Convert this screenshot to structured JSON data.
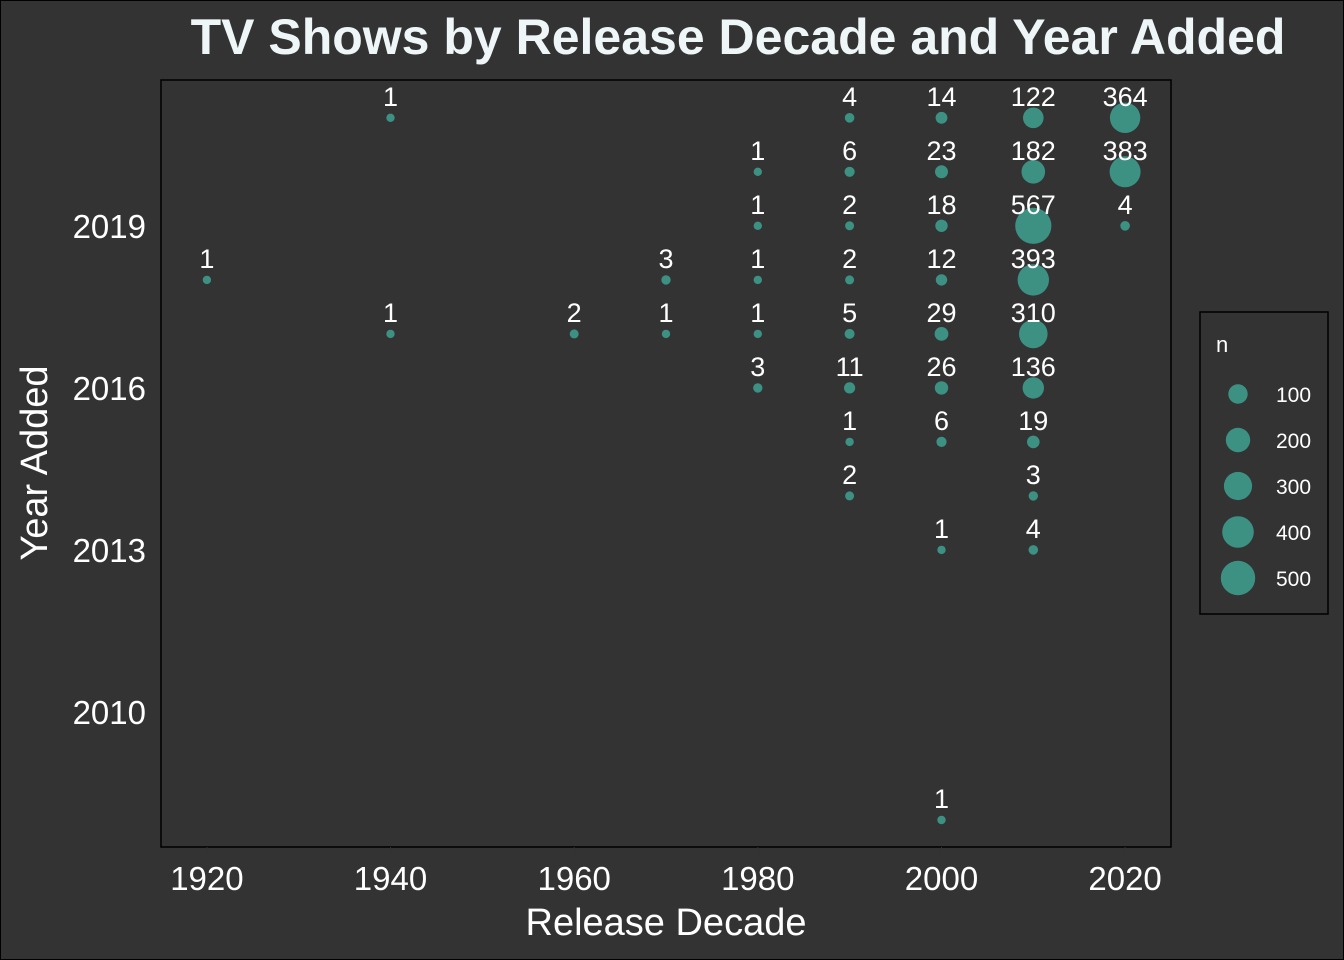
{
  "chart_data": {
    "type": "scatter",
    "title": "TV Shows by Release Decade and Year Added",
    "xlabel": "Release Decade",
    "ylabel": "Year Added",
    "x_ticks": [
      1920,
      1940,
      1960,
      1980,
      2000,
      2020
    ],
    "y_ticks": [
      2010,
      2013,
      2016,
      2019
    ],
    "xlim": [
      1915,
      2025
    ],
    "ylim": [
      2007.5,
      2021.7
    ],
    "grid": false,
    "legend": {
      "title": "n",
      "placement": "right",
      "entries": [
        100,
        200,
        300,
        400,
        500
      ]
    },
    "size_variable": "n",
    "colors": {
      "background": "#333333",
      "point": "#3d9b8c",
      "text": "#ffffff",
      "title": "#eef6f8",
      "border": "#000000"
    },
    "points": [
      {
        "x": 1920,
        "y": 2018,
        "n": 1
      },
      {
        "x": 1940,
        "y": 2021,
        "n": 1
      },
      {
        "x": 1940,
        "y": 2017,
        "n": 1
      },
      {
        "x": 1960,
        "y": 2017,
        "n": 2
      },
      {
        "x": 1970,
        "y": 2018,
        "n": 3
      },
      {
        "x": 1970,
        "y": 2017,
        "n": 1
      },
      {
        "x": 1980,
        "y": 2020,
        "n": 1
      },
      {
        "x": 1980,
        "y": 2019,
        "n": 1
      },
      {
        "x": 1980,
        "y": 2018,
        "n": 1
      },
      {
        "x": 1980,
        "y": 2017,
        "n": 1
      },
      {
        "x": 1980,
        "y": 2016,
        "n": 3
      },
      {
        "x": 1990,
        "y": 2021,
        "n": 4
      },
      {
        "x": 1990,
        "y": 2020,
        "n": 6
      },
      {
        "x": 1990,
        "y": 2019,
        "n": 2
      },
      {
        "x": 1990,
        "y": 2018,
        "n": 2
      },
      {
        "x": 1990,
        "y": 2017,
        "n": 5
      },
      {
        "x": 1990,
        "y": 2016,
        "n": 11
      },
      {
        "x": 1990,
        "y": 2015,
        "n": 1
      },
      {
        "x": 1990,
        "y": 2014,
        "n": 2
      },
      {
        "x": 2000,
        "y": 2021,
        "n": 14
      },
      {
        "x": 2000,
        "y": 2020,
        "n": 23
      },
      {
        "x": 2000,
        "y": 2019,
        "n": 18
      },
      {
        "x": 2000,
        "y": 2018,
        "n": 12
      },
      {
        "x": 2000,
        "y": 2017,
        "n": 29
      },
      {
        "x": 2000,
        "y": 2016,
        "n": 26
      },
      {
        "x": 2000,
        "y": 2015,
        "n": 6
      },
      {
        "x": 2000,
        "y": 2013,
        "n": 1
      },
      {
        "x": 2000,
        "y": 2008,
        "n": 1
      },
      {
        "x": 2010,
        "y": 2021,
        "n": 122
      },
      {
        "x": 2010,
        "y": 2020,
        "n": 182
      },
      {
        "x": 2010,
        "y": 2019,
        "n": 567
      },
      {
        "x": 2010,
        "y": 2018,
        "n": 393
      },
      {
        "x": 2010,
        "y": 2017,
        "n": 310
      },
      {
        "x": 2010,
        "y": 2016,
        "n": 136
      },
      {
        "x": 2010,
        "y": 2015,
        "n": 19
      },
      {
        "x": 2010,
        "y": 2014,
        "n": 3
      },
      {
        "x": 2010,
        "y": 2013,
        "n": 4
      },
      {
        "x": 2020,
        "y": 2021,
        "n": 364
      },
      {
        "x": 2020,
        "y": 2020,
        "n": 383
      },
      {
        "x": 2020,
        "y": 2019,
        "n": 4
      }
    ]
  }
}
